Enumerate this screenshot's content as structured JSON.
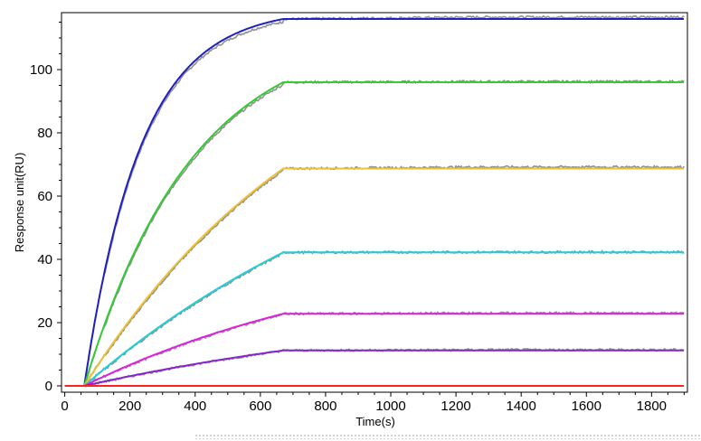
{
  "chart_data": {
    "type": "line",
    "title": "",
    "xlabel": "Time(s)",
    "ylabel": "Response unit(RU)",
    "xlim": [
      -10,
      1910
    ],
    "ylim": [
      -2,
      118
    ],
    "x_ticks": [
      0,
      200,
      400,
      600,
      800,
      1000,
      1200,
      1400,
      1600,
      1800
    ],
    "y_ticks": [
      0,
      20,
      40,
      60,
      80,
      100
    ],
    "grid": false,
    "legend": "none",
    "injection_start": 60,
    "injection_end": 670,
    "x_end": 1900,
    "series": [
      {
        "color": "#2020c0",
        "plateau": 116.0,
        "k": 0.0058,
        "raw_offset": 0.6
      },
      {
        "color": "#33cc33",
        "plateau": 96.0,
        "k": 0.003,
        "raw_offset": 0.2
      },
      {
        "color": "#f0c030",
        "plateau": 68.7,
        "k": 0.0013,
        "raw_offset": 0.5
      },
      {
        "color": "#20d0d8",
        "plateau": 42.2,
        "k": 0.0009,
        "raw_offset": 0.1
      },
      {
        "color": "#dd22dd",
        "plateau": 22.8,
        "k": 0.0011,
        "raw_offset": 0.2
      },
      {
        "color": "#8822cc",
        "plateau": 11.2,
        "k": 0.0008,
        "raw_offset": 0.2
      },
      {
        "color": "#ff2020",
        "plateau": 0.0,
        "k": 0.0,
        "raw_offset": 0.0
      }
    ],
    "raw_color": "#909090"
  }
}
